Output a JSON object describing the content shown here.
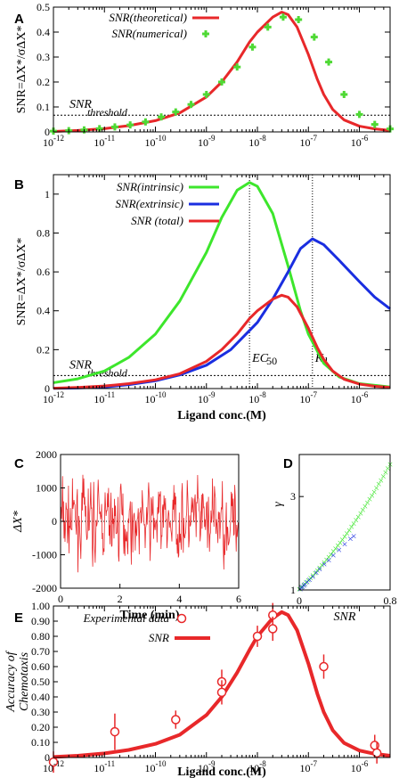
{
  "panels": {
    "A": "A",
    "B": "B",
    "C": "C",
    "D": "D",
    "E": "E"
  },
  "chart_data": [
    {
      "panel": "A",
      "type": "line",
      "xscale": "log",
      "xlim": [
        "1e-12",
        "4e-6"
      ],
      "ylim": [
        0,
        0.5
      ],
      "x_ticks": [
        "-12",
        "-11",
        "-10",
        "-9",
        "-8",
        "-7",
        "-6"
      ],
      "y_ticks": [
        "0",
        "0.1",
        "0.2",
        "0.3",
        "0.4",
        "0.5"
      ],
      "ylabel": "SNR=ΔX*/σΔX*",
      "threshold": {
        "y": 0.067,
        "label": "SNR",
        "sub": "threshold"
      },
      "legend": [
        {
          "text": "SNR(theoretical)",
          "color": "#e8282a"
        },
        {
          "text": "SNR(numerical)",
          "color": "#4fd935"
        }
      ],
      "series": [
        {
          "name": "SNR(theoretical)",
          "type": "line",
          "color": "#e8282a",
          "x": [
            "1e-12",
            "3e-12",
            "1e-11",
            "3e-11",
            "1e-10",
            "3e-10",
            "1e-9",
            "2e-9",
            "4e-9",
            "7e-9",
            "1e-8",
            "2e-8",
            "3e-8",
            "4e-8",
            "6e-8",
            "1e-7",
            "1.5e-7",
            "2e-7",
            "3e-7",
            "5e-7",
            "1e-6",
            "2e-6",
            "4e-6"
          ],
          "y": [
            0.002,
            0.006,
            0.013,
            0.025,
            0.045,
            0.076,
            0.14,
            0.2,
            0.28,
            0.36,
            0.4,
            0.46,
            0.48,
            0.47,
            0.42,
            0.31,
            0.21,
            0.15,
            0.09,
            0.048,
            0.023,
            0.012,
            0.006
          ]
        },
        {
          "name": "SNR(numerical)",
          "type": "scatter",
          "color": "#4fd935",
          "x": [
            "1e-12",
            "2e-12",
            "4e-12",
            "8e-12",
            "1.6e-11",
            "3.2e-11",
            "6.4e-11",
            "1.3e-10",
            "2.5e-10",
            "5e-10",
            "1e-9",
            "2e-9",
            "4e-9",
            "8e-9",
            "1.6e-8",
            "3.2e-8",
            "6.4e-8",
            "1.3e-7",
            "2.5e-7",
            "5e-7",
            "1e-6",
            "2e-6",
            "4e-6"
          ],
          "y": [
            0.003,
            0.005,
            0.008,
            0.013,
            0.02,
            0.028,
            0.04,
            0.06,
            0.08,
            0.11,
            0.15,
            0.2,
            0.26,
            0.34,
            0.42,
            0.46,
            0.45,
            0.38,
            0.28,
            0.15,
            0.07,
            0.03,
            0.012
          ]
        }
      ]
    },
    {
      "panel": "B",
      "type": "line",
      "xscale": "log",
      "xlim": [
        "1e-12",
        "4e-6"
      ],
      "ylim": [
        0,
        1.1
      ],
      "x_ticks": [
        "-12",
        "-11",
        "-10",
        "-9",
        "-8",
        "-7",
        "-6"
      ],
      "y_ticks": [
        "0",
        "0.2",
        "0.4",
        "0.6",
        "0.8",
        "1"
      ],
      "ylabel": "SNR=ΔX*/σΔX*",
      "xlabel": "Ligand conc.(M)",
      "threshold": {
        "y": 0.067,
        "label": "SNR",
        "sub": "threshold"
      },
      "vlines": [
        {
          "x": "7e-9",
          "label": "EC",
          "sub": "50"
        },
        {
          "x": "1.2e-7",
          "label": "K",
          "sub": "d"
        }
      ],
      "legend": [
        {
          "text": "SNR(intrinsic)",
          "color": "#3de62c"
        },
        {
          "text": "SNR(extrinsic)",
          "color": "#1a2ee0"
        },
        {
          "text": "SNR (total)",
          "color": "#e8282a"
        }
      ],
      "series": [
        {
          "name": "SNR(intrinsic)",
          "color": "#3de62c",
          "x": [
            "1e-12",
            "3e-12",
            "1e-11",
            "3e-11",
            "1e-10",
            "3e-10",
            "1e-9",
            "2e-9",
            "4e-9",
            "7e-9",
            "1e-8",
            "2e-8",
            "4e-8",
            "7e-8",
            "1e-7",
            "2e-7",
            "4e-7",
            "1e-6",
            "4e-6"
          ],
          "y": [
            0.03,
            0.05,
            0.09,
            0.16,
            0.28,
            0.45,
            0.7,
            0.88,
            1.02,
            1.06,
            1.04,
            0.9,
            0.63,
            0.4,
            0.28,
            0.13,
            0.06,
            0.025,
            0.008
          ]
        },
        {
          "name": "SNR(extrinsic)",
          "color": "#1a2ee0",
          "x": [
            "1e-12",
            "3e-12",
            "1e-11",
            "3e-11",
            "1e-10",
            "3e-10",
            "1e-9",
            "3e-9",
            "1e-8",
            "2e-8",
            "4e-8",
            "7e-8",
            "1.2e-7",
            "2e-7",
            "4e-7",
            "1e-6",
            "2e-6",
            "4e-6"
          ],
          "y": [
            0.001,
            0.003,
            0.008,
            0.02,
            0.04,
            0.07,
            0.12,
            0.2,
            0.34,
            0.46,
            0.6,
            0.72,
            0.77,
            0.74,
            0.66,
            0.55,
            0.47,
            0.41
          ]
        },
        {
          "name": "SNR (total)",
          "color": "#e8282a",
          "x": [
            "1e-12",
            "3e-12",
            "1e-11",
            "3e-11",
            "1e-10",
            "3e-10",
            "1e-9",
            "2e-9",
            "4e-9",
            "7e-9",
            "1e-8",
            "2e-8",
            "3e-8",
            "4e-8",
            "6e-8",
            "1e-7",
            "1.5e-7",
            "2e-7",
            "3e-7",
            "5e-7",
            "1e-6",
            "2e-6",
            "4e-6"
          ],
          "y": [
            0.002,
            0.006,
            0.013,
            0.025,
            0.045,
            0.076,
            0.14,
            0.2,
            0.28,
            0.36,
            0.4,
            0.46,
            0.48,
            0.47,
            0.42,
            0.31,
            0.21,
            0.15,
            0.09,
            0.048,
            0.023,
            0.012,
            0.006
          ]
        }
      ]
    },
    {
      "panel": "C",
      "type": "line",
      "xlim": [
        0,
        6
      ],
      "ylim": [
        -2000,
        2000
      ],
      "x_ticks": [
        "0",
        "2",
        "4",
        "6"
      ],
      "y_ticks": [
        "2000",
        "1000",
        "0",
        "-1000",
        "-2000"
      ],
      "ylabel": "ΔX*",
      "xlabel": "Time (min)",
      "series": [
        {
          "name": "",
          "color": "#e8282a",
          "noise": {
            "n": 360,
            "sigma": 520,
            "seed": 7
          }
        }
      ]
    },
    {
      "panel": "D",
      "type": "scatter",
      "xlim": [
        0,
        0.8
      ],
      "ylim": [
        1,
        3.9
      ],
      "x_ticks": [
        "0",
        "0.8"
      ],
      "y_ticks": [
        "1",
        "3"
      ],
      "ylabel": "γ",
      "xlabel": "SNR",
      "series": [
        {
          "name": "",
          "color": "#3de62c",
          "curve": {
            "from": 0,
            "to": 0.8,
            "step": 0.02,
            "slope": 2.3,
            "quad": 1.3
          }
        },
        {
          "name": "",
          "color": "#1a2ee0",
          "x": [
            0.01,
            0.02,
            0.03,
            0.04,
            0.05,
            0.07,
            0.09,
            0.12,
            0.15,
            0.18,
            0.22,
            0.26,
            0.3,
            0.35,
            0.4,
            0.45,
            0.48
          ],
          "y": [
            1.02,
            1.05,
            1.07,
            1.1,
            1.12,
            1.17,
            1.22,
            1.29,
            1.37,
            1.45,
            1.55,
            1.64,
            1.74,
            1.86,
            1.98,
            2.1,
            2.15
          ]
        }
      ]
    },
    {
      "panel": "E",
      "type": "scatter",
      "xscale": "log",
      "xlim": [
        "1e-12",
        "4e-6"
      ],
      "ylim": [
        0,
        1.0
      ],
      "x_ticks": [
        "-12",
        "-11",
        "-10",
        "-9",
        "-8",
        "-7",
        "-6"
      ],
      "y_ticks": [
        "0",
        "0.10",
        "0.20",
        "0.30",
        "0.40",
        "0.50",
        "0.60",
        "0.70",
        "0.80",
        "0.90",
        "1.00"
      ],
      "ylabel_lines": [
        "Accuracy of",
        "Chemotaxis"
      ],
      "xlabel": "Ligand conc.(M)",
      "legend": [
        {
          "text": "Experimental data",
          "color": "#e8282a"
        },
        {
          "text": "SNR",
          "color": "#e8282a"
        }
      ],
      "series": [
        {
          "name": "Experimental data",
          "type": "scatter",
          "color": "#e8282a",
          "x": [
            "1e-12",
            "1.6e-11",
            "2.5e-10",
            "2e-9",
            "2e-9",
            "1e-8",
            "2e-8",
            "2e-8",
            "2e-7",
            "2e-6",
            "2.2e-6"
          ],
          "y": [
            -0.03,
            0.17,
            0.25,
            0.5,
            0.43,
            0.8,
            0.94,
            0.85,
            0.6,
            0.08,
            0.03
          ],
          "err": [
            0.07,
            0.12,
            0.06,
            0.08,
            0.08,
            0.07,
            0.08,
            0.08,
            0.08,
            0.07,
            0.07
          ]
        },
        {
          "name": "SNR",
          "type": "line",
          "color": "#e8282a",
          "x": [
            "1e-12",
            "3e-12",
            "1e-11",
            "3e-11",
            "1e-10",
            "3e-10",
            "1e-9",
            "2e-9",
            "4e-9",
            "7e-9",
            "1e-8",
            "2e-8",
            "3e-8",
            "4e-8",
            "6e-8",
            "1e-7",
            "1.5e-7",
            "2e-7",
            "3e-7",
            "5e-7",
            "1e-6",
            "2e-6",
            "4e-6"
          ],
          "y": [
            0.004,
            0.012,
            0.027,
            0.05,
            0.09,
            0.15,
            0.28,
            0.4,
            0.56,
            0.71,
            0.8,
            0.92,
            0.96,
            0.94,
            0.84,
            0.62,
            0.42,
            0.3,
            0.18,
            0.096,
            0.046,
            0.024,
            0.012
          ]
        }
      ]
    }
  ]
}
